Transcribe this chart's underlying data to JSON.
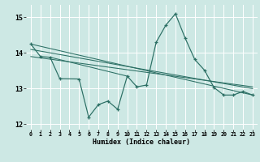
{
  "xlabel": "Humidex (Indice chaleur)",
  "xlim": [
    -0.5,
    23.5
  ],
  "ylim": [
    11.85,
    15.35
  ],
  "yticks": [
    12,
    13,
    14,
    15
  ],
  "xticks": [
    0,
    1,
    2,
    3,
    4,
    5,
    6,
    7,
    8,
    9,
    10,
    11,
    12,
    13,
    14,
    15,
    16,
    17,
    18,
    19,
    20,
    21,
    22,
    23
  ],
  "bg_color": "#cde8e4",
  "grid_color": "#ffffff",
  "line_color": "#2a6e63",
  "main_line": {
    "x": [
      0,
      1,
      2,
      3,
      5,
      6,
      7,
      8,
      9,
      10,
      11,
      12,
      13,
      14,
      15,
      16,
      17,
      18,
      19,
      20,
      21,
      22,
      23
    ],
    "y": [
      14.25,
      13.9,
      13.88,
      13.28,
      13.27,
      12.2,
      12.55,
      12.65,
      12.42,
      13.35,
      13.05,
      13.1,
      14.3,
      14.78,
      15.1,
      14.42,
      13.82,
      13.52,
      13.03,
      12.82,
      12.82,
      12.92,
      12.82
    ]
  },
  "trend_lines": [
    {
      "x": [
        0,
        23
      ],
      "y": [
        14.25,
        12.82
      ]
    },
    {
      "x": [
        0,
        23
      ],
      "y": [
        14.1,
        13.0
      ]
    },
    {
      "x": [
        0,
        23
      ],
      "y": [
        13.9,
        13.05
      ]
    },
    {
      "x": [
        2,
        10
      ],
      "y": [
        13.88,
        13.35
      ]
    }
  ]
}
